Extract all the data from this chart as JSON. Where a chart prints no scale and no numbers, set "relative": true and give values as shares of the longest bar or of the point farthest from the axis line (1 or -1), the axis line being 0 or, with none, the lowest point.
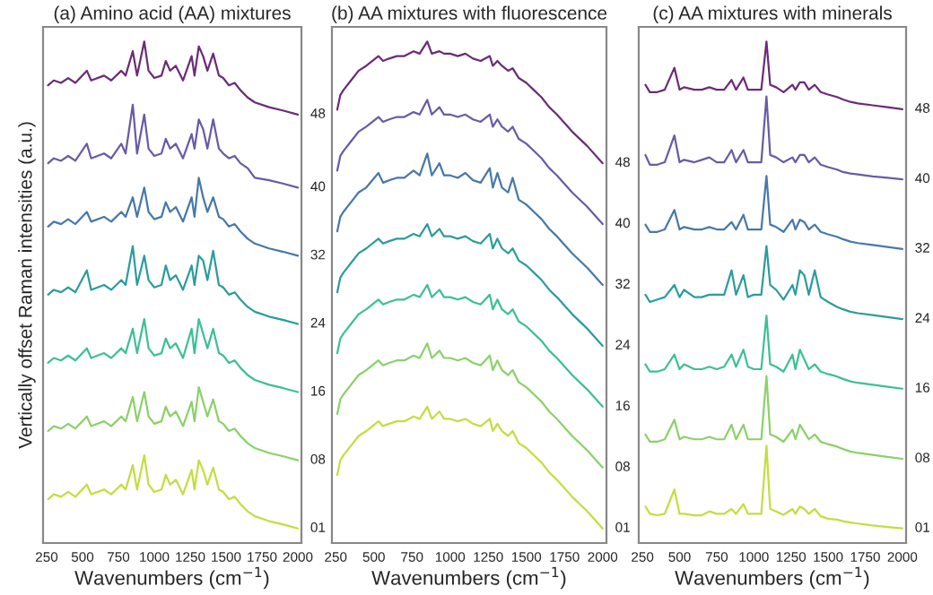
{
  "chart_data": [
    {
      "type": "line",
      "title": "(a) Amino acid (AA) mixtures",
      "xlabel": "Wavenumbers (cm$^{−1}$)",
      "ylabel": "Vertically offset Raman intensities (a.u.)",
      "relative": true,
      "tick_labels": "x",
      "xlim": [
        225,
        2025
      ],
      "xticks": [
        250,
        500,
        750,
        1000,
        1250,
        1500,
        1750,
        2000
      ],
      "x": [
        260,
        300,
        350,
        400,
        450,
        530,
        560,
        650,
        700,
        770,
        800,
        850,
        880,
        930,
        960,
        1000,
        1050,
        1080,
        1110,
        1150,
        1200,
        1260,
        1280,
        1310,
        1340,
        1370,
        1410,
        1450,
        1480,
        1520,
        1560,
        1600,
        1650,
        1700,
        1800,
        1900,
        2000
      ],
      "series": [
        {
          "name": "01",
          "color": "#c5dd3f",
          "values": [
            0.06,
            0.07,
            0.065,
            0.075,
            0.065,
            0.09,
            0.07,
            0.08,
            0.07,
            0.09,
            0.08,
            0.13,
            0.08,
            0.15,
            0.09,
            0.075,
            0.08,
            0.11,
            0.09,
            0.1,
            0.07,
            0.12,
            0.08,
            0.14,
            0.12,
            0.09,
            0.125,
            0.08,
            0.075,
            0.06,
            0.065,
            0.05,
            0.035,
            0.025,
            0.015,
            0.008,
            0
          ]
        },
        {
          "name": "08",
          "color": "#8bd16a",
          "values": [
            0.2,
            0.21,
            0.205,
            0.215,
            0.205,
            0.23,
            0.21,
            0.22,
            0.21,
            0.23,
            0.22,
            0.27,
            0.22,
            0.28,
            0.23,
            0.215,
            0.22,
            0.25,
            0.23,
            0.24,
            0.21,
            0.26,
            0.22,
            0.29,
            0.26,
            0.23,
            0.265,
            0.22,
            0.215,
            0.2,
            0.205,
            0.19,
            0.175,
            0.165,
            0.155,
            0.148,
            0.14
          ]
        },
        {
          "name": "16",
          "color": "#3dbf94",
          "values": [
            0.34,
            0.35,
            0.345,
            0.355,
            0.345,
            0.37,
            0.35,
            0.36,
            0.35,
            0.37,
            0.36,
            0.41,
            0.36,
            0.43,
            0.37,
            0.355,
            0.36,
            0.39,
            0.37,
            0.38,
            0.35,
            0.41,
            0.36,
            0.43,
            0.4,
            0.37,
            0.41,
            0.36,
            0.355,
            0.34,
            0.345,
            0.33,
            0.315,
            0.305,
            0.295,
            0.288,
            0.28
          ]
        },
        {
          "name": "24",
          "color": "#2b9c9e",
          "values": [
            0.48,
            0.49,
            0.485,
            0.495,
            0.485,
            0.53,
            0.49,
            0.5,
            0.49,
            0.51,
            0.5,
            0.58,
            0.5,
            0.56,
            0.51,
            0.495,
            0.5,
            0.54,
            0.51,
            0.52,
            0.49,
            0.54,
            0.5,
            0.56,
            0.55,
            0.51,
            0.57,
            0.5,
            0.495,
            0.48,
            0.485,
            0.47,
            0.455,
            0.445,
            0.435,
            0.428,
            0.42
          ]
        },
        {
          "name": "32",
          "color": "#4878a8",
          "values": [
            0.62,
            0.63,
            0.625,
            0.635,
            0.625,
            0.65,
            0.63,
            0.64,
            0.63,
            0.65,
            0.64,
            0.68,
            0.64,
            0.7,
            0.65,
            0.635,
            0.64,
            0.67,
            0.65,
            0.66,
            0.63,
            0.68,
            0.64,
            0.72,
            0.68,
            0.65,
            0.68,
            0.64,
            0.635,
            0.62,
            0.625,
            0.61,
            0.595,
            0.585,
            0.575,
            0.568,
            0.56
          ]
        },
        {
          "name": "40",
          "color": "#6a5aa5",
          "values": [
            0.75,
            0.76,
            0.755,
            0.765,
            0.755,
            0.79,
            0.76,
            0.77,
            0.76,
            0.79,
            0.77,
            0.87,
            0.77,
            0.85,
            0.78,
            0.765,
            0.77,
            0.8,
            0.78,
            0.79,
            0.76,
            0.81,
            0.78,
            0.84,
            0.82,
            0.78,
            0.84,
            0.78,
            0.77,
            0.76,
            0.765,
            0.75,
            0.74,
            0.72,
            0.715,
            0.708,
            0.7
          ]
        },
        {
          "name": "48",
          "color": "#6b2c78",
          "values": [
            0.91,
            0.92,
            0.915,
            0.925,
            0.915,
            0.94,
            0.92,
            0.93,
            0.92,
            0.94,
            0.93,
            0.98,
            0.93,
            1.0,
            0.94,
            0.925,
            0.93,
            0.96,
            0.94,
            0.95,
            0.92,
            0.97,
            0.93,
            0.99,
            0.97,
            0.94,
            0.975,
            0.93,
            0.925,
            0.91,
            0.915,
            0.9,
            0.885,
            0.875,
            0.865,
            0.858,
            0.85
          ]
        }
      ]
    },
    {
      "type": "line",
      "title": "(b) AA mixtures with fluorescence",
      "xlabel": "Wavenumbers (cm$^{−1}$)",
      "relative": true,
      "tick_labels": "x",
      "xlim": [
        225,
        2025
      ],
      "xticks": [
        250,
        500,
        750,
        1000,
        1250,
        1500,
        1750,
        2000
      ],
      "x": [
        260,
        280,
        300,
        350,
        400,
        450,
        530,
        560,
        600,
        650,
        700,
        760,
        800,
        850,
        880,
        930,
        960,
        1000,
        1050,
        1100,
        1150,
        1200,
        1260,
        1280,
        1310,
        1340,
        1380,
        1410,
        1450,
        1500,
        1550,
        1600,
        1650,
        1700,
        1800,
        1900,
        2000
      ],
      "series": [
        {
          "name": "01",
          "color": "#c5dd3f",
          "values": [
            0.11,
            0.14,
            0.15,
            0.17,
            0.19,
            0.2,
            0.22,
            0.21,
            0.215,
            0.22,
            0.22,
            0.23,
            0.225,
            0.25,
            0.225,
            0.24,
            0.225,
            0.225,
            0.22,
            0.225,
            0.215,
            0.21,
            0.225,
            0.2,
            0.215,
            0.2,
            0.19,
            0.2,
            0.175,
            0.165,
            0.15,
            0.135,
            0.115,
            0.1,
            0.065,
            0.035,
            0
          ]
        },
        {
          "name": "08",
          "color": "#8bd16a",
          "values": [
            0.235,
            0.265,
            0.275,
            0.295,
            0.315,
            0.325,
            0.345,
            0.335,
            0.34,
            0.345,
            0.345,
            0.355,
            0.35,
            0.38,
            0.35,
            0.365,
            0.35,
            0.35,
            0.345,
            0.35,
            0.34,
            0.335,
            0.355,
            0.325,
            0.345,
            0.325,
            0.315,
            0.325,
            0.3,
            0.29,
            0.275,
            0.26,
            0.24,
            0.225,
            0.19,
            0.16,
            0.125
          ]
        },
        {
          "name": "16",
          "color": "#3dbf94",
          "values": [
            0.36,
            0.39,
            0.4,
            0.42,
            0.44,
            0.45,
            0.47,
            0.46,
            0.465,
            0.47,
            0.47,
            0.48,
            0.475,
            0.5,
            0.475,
            0.49,
            0.475,
            0.475,
            0.47,
            0.475,
            0.465,
            0.46,
            0.48,
            0.45,
            0.47,
            0.45,
            0.44,
            0.45,
            0.425,
            0.415,
            0.4,
            0.385,
            0.365,
            0.35,
            0.315,
            0.285,
            0.25
          ]
        },
        {
          "name": "24",
          "color": "#2b9c9e",
          "values": [
            0.485,
            0.515,
            0.525,
            0.545,
            0.565,
            0.575,
            0.595,
            0.585,
            0.59,
            0.595,
            0.595,
            0.605,
            0.6,
            0.625,
            0.6,
            0.615,
            0.6,
            0.6,
            0.595,
            0.6,
            0.59,
            0.585,
            0.605,
            0.575,
            0.595,
            0.575,
            0.565,
            0.575,
            0.55,
            0.54,
            0.525,
            0.51,
            0.49,
            0.475,
            0.44,
            0.41,
            0.375
          ]
        },
        {
          "name": "32",
          "color": "#4878a8",
          "values": [
            0.61,
            0.64,
            0.65,
            0.67,
            0.69,
            0.7,
            0.73,
            0.71,
            0.715,
            0.72,
            0.72,
            0.735,
            0.725,
            0.77,
            0.725,
            0.75,
            0.725,
            0.725,
            0.72,
            0.73,
            0.715,
            0.71,
            0.74,
            0.7,
            0.73,
            0.7,
            0.69,
            0.72,
            0.675,
            0.665,
            0.65,
            0.635,
            0.615,
            0.6,
            0.565,
            0.535,
            0.5
          ]
        },
        {
          "name": "40",
          "color": "#6a5aa5",
          "values": [
            0.735,
            0.765,
            0.775,
            0.795,
            0.815,
            0.825,
            0.845,
            0.835,
            0.84,
            0.845,
            0.845,
            0.855,
            0.85,
            0.88,
            0.85,
            0.865,
            0.85,
            0.85,
            0.845,
            0.85,
            0.84,
            0.835,
            0.85,
            0.825,
            0.84,
            0.825,
            0.815,
            0.825,
            0.8,
            0.79,
            0.775,
            0.76,
            0.74,
            0.725,
            0.69,
            0.66,
            0.625
          ]
        },
        {
          "name": "48",
          "color": "#6b2c78",
          "values": [
            0.86,
            0.89,
            0.9,
            0.92,
            0.94,
            0.95,
            0.97,
            0.96,
            0.965,
            0.97,
            0.97,
            0.98,
            0.975,
            1.0,
            0.975,
            0.98,
            0.975,
            0.975,
            0.97,
            0.975,
            0.965,
            0.96,
            0.97,
            0.95,
            0.96,
            0.95,
            0.94,
            0.945,
            0.925,
            0.915,
            0.9,
            0.885,
            0.865,
            0.85,
            0.815,
            0.785,
            0.75
          ]
        }
      ]
    },
    {
      "type": "line",
      "title": "(c) AA mixtures with minerals",
      "xlabel": "Wavenumbers (cm$^{−1}$)",
      "relative": true,
      "tick_labels": "x",
      "xlim": [
        225,
        2025
      ],
      "xticks": [
        250,
        500,
        750,
        1000,
        1250,
        1500,
        1750,
        2000
      ],
      "x": [
        270,
        300,
        350,
        400,
        465,
        500,
        530,
        600,
        650,
        700,
        750,
        800,
        850,
        880,
        930,
        960,
        1000,
        1050,
        1085,
        1110,
        1150,
        1200,
        1260,
        1280,
        1310,
        1340,
        1370,
        1410,
        1450,
        1500,
        1560,
        1600,
        1650,
        1700,
        1800,
        1900,
        2000
      ],
      "series": [
        {
          "name": "01",
          "color": "#c5dd3f",
          "values": [
            0.045,
            0.03,
            0.027,
            0.03,
            0.08,
            0.03,
            0.03,
            0.027,
            0.027,
            0.035,
            0.03,
            0.03,
            0.04,
            0.03,
            0.05,
            0.03,
            0.03,
            0.03,
            0.17,
            0.04,
            0.035,
            0.028,
            0.04,
            0.03,
            0.045,
            0.04,
            0.03,
            0.04,
            0.025,
            0.02,
            0.018,
            0.015,
            0.012,
            0.01,
            0.006,
            0.003,
            0
          ]
        },
        {
          "name": "08",
          "color": "#8bd16a",
          "values": [
            0.193,
            0.178,
            0.178,
            0.183,
            0.223,
            0.183,
            0.188,
            0.183,
            0.183,
            0.188,
            0.183,
            0.183,
            0.213,
            0.183,
            0.213,
            0.183,
            0.183,
            0.183,
            0.313,
            0.193,
            0.188,
            0.178,
            0.203,
            0.183,
            0.213,
            0.198,
            0.183,
            0.193,
            0.178,
            0.173,
            0.168,
            0.163,
            0.158,
            0.155,
            0.151,
            0.147,
            0.143
          ]
        },
        {
          "name": "16",
          "color": "#3dbf94",
          "values": [
            0.337,
            0.322,
            0.322,
            0.327,
            0.357,
            0.327,
            0.337,
            0.327,
            0.327,
            0.332,
            0.327,
            0.332,
            0.357,
            0.332,
            0.367,
            0.332,
            0.327,
            0.327,
            0.437,
            0.337,
            0.332,
            0.322,
            0.357,
            0.327,
            0.367,
            0.347,
            0.327,
            0.337,
            0.322,
            0.317,
            0.312,
            0.307,
            0.302,
            0.299,
            0.295,
            0.291,
            0.287
          ]
        },
        {
          "name": "24",
          "color": "#2b9c9e",
          "values": [
            0.48,
            0.465,
            0.47,
            0.475,
            0.5,
            0.475,
            0.49,
            0.475,
            0.475,
            0.48,
            0.48,
            0.48,
            0.53,
            0.48,
            0.52,
            0.475,
            0.48,
            0.48,
            0.58,
            0.5,
            0.49,
            0.47,
            0.5,
            0.48,
            0.53,
            0.52,
            0.48,
            0.53,
            0.475,
            0.465,
            0.455,
            0.45,
            0.445,
            0.442,
            0.438,
            0.434,
            0.43
          ]
        },
        {
          "name": "32",
          "color": "#4878a8",
          "values": [
            0.624,
            0.609,
            0.609,
            0.614,
            0.654,
            0.614,
            0.619,
            0.614,
            0.614,
            0.619,
            0.614,
            0.614,
            0.629,
            0.614,
            0.644,
            0.614,
            0.614,
            0.614,
            0.724,
            0.624,
            0.619,
            0.609,
            0.634,
            0.614,
            0.634,
            0.629,
            0.614,
            0.624,
            0.609,
            0.604,
            0.599,
            0.594,
            0.589,
            0.586,
            0.582,
            0.578,
            0.574
          ]
        },
        {
          "name": "40",
          "color": "#6a5aa5",
          "values": [
            0.767,
            0.747,
            0.747,
            0.752,
            0.807,
            0.752,
            0.757,
            0.752,
            0.757,
            0.762,
            0.752,
            0.752,
            0.777,
            0.752,
            0.777,
            0.752,
            0.752,
            0.752,
            0.887,
            0.767,
            0.762,
            0.752,
            0.762,
            0.752,
            0.767,
            0.767,
            0.752,
            0.762,
            0.747,
            0.742,
            0.737,
            0.732,
            0.729,
            0.727,
            0.723,
            0.72,
            0.717
          ]
        },
        {
          "name": "48",
          "color": "#6b2c78",
          "values": [
            0.911,
            0.896,
            0.896,
            0.901,
            0.946,
            0.901,
            0.906,
            0.901,
            0.901,
            0.906,
            0.901,
            0.901,
            0.921,
            0.901,
            0.926,
            0.901,
            0.901,
            0.901,
            1.0,
            0.911,
            0.906,
            0.896,
            0.911,
            0.901,
            0.916,
            0.916,
            0.901,
            0.911,
            0.896,
            0.891,
            0.886,
            0.881,
            0.876,
            0.873,
            0.869,
            0.865,
            0.861
          ]
        }
      ]
    }
  ]
}
